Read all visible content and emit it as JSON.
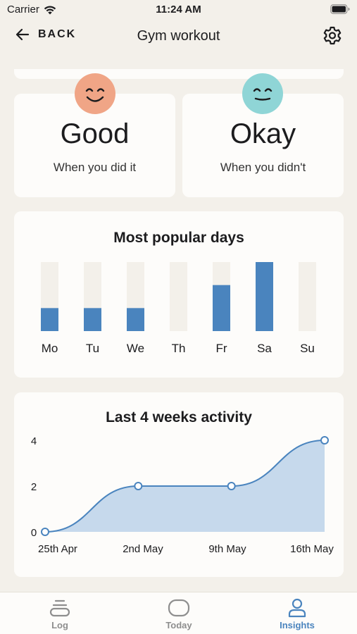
{
  "status_bar": {
    "carrier": "Carrier",
    "time": "11:24 AM"
  },
  "nav": {
    "back_label": "BACK",
    "title": "Gym workout"
  },
  "mood": {
    "did": {
      "word": "Good",
      "caption": "When you did it",
      "face_color": "#f0a586"
    },
    "didnt": {
      "word": "Okay",
      "caption": "When you didn't",
      "face_color": "#8fd5d6"
    }
  },
  "chart_data": [
    {
      "type": "bar",
      "title": "Most popular days",
      "categories": [
        "Mo",
        "Tu",
        "We",
        "Th",
        "Fr",
        "Sa",
        "Su"
      ],
      "values": [
        1,
        1,
        1,
        0,
        2,
        3,
        0
      ],
      "ylim": [
        0,
        3
      ],
      "bar_color": "#4a84be",
      "track_color": "#f3f0ea"
    },
    {
      "type": "area",
      "title": "Last 4 weeks activity",
      "x": [
        "25th Apr",
        "2nd May",
        "9th May",
        "16th May"
      ],
      "values": [
        0,
        2,
        2,
        4
      ],
      "y_ticks": [
        "0",
        "2",
        "4"
      ],
      "ylim": [
        0,
        4
      ],
      "line_color": "#4a84be",
      "fill_color": "#c6d9ec"
    }
  ],
  "tabs": [
    {
      "label": "Log",
      "icon": "log-icon"
    },
    {
      "label": "Today",
      "icon": "today-icon"
    },
    {
      "label": "Insights",
      "icon": "insights-icon",
      "active": true
    }
  ]
}
